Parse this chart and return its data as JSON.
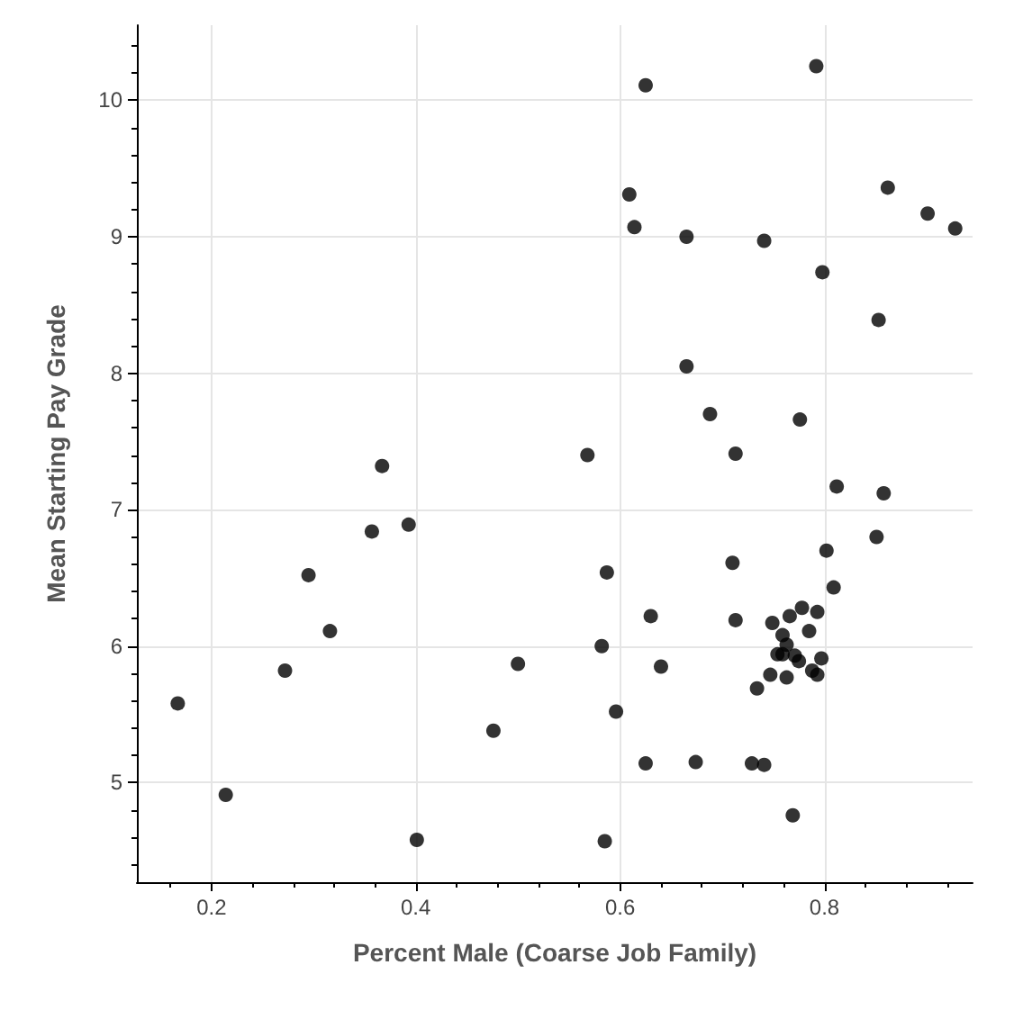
{
  "chart_data": {
    "type": "scatter",
    "xlabel": "Percent Male (Coarse Job Family)",
    "ylabel": "Mean Starting Pay Grade",
    "xlim": [
      0.127,
      0.945
    ],
    "ylim": [
      4.27,
      10.55
    ],
    "xticks": [
      0.2,
      0.4,
      0.6,
      0.8
    ],
    "yticks": [
      5,
      6,
      7,
      8,
      9,
      10
    ],
    "grid": true,
    "marker": "circle",
    "series": [
      {
        "color": "#000000",
        "x": [
          0.167,
          0.214,
          0.272,
          0.295,
          0.316,
          0.357,
          0.367,
          0.393,
          0.401,
          0.476,
          0.5,
          0.568,
          0.587,
          0.582,
          0.585,
          0.596,
          0.625,
          0.792,
          0.609,
          0.614,
          0.665,
          0.741,
          0.798,
          0.862,
          0.901,
          0.928,
          0.853,
          0.665,
          0.688,
          0.776,
          0.713,
          0.812,
          0.858,
          0.63,
          0.64,
          0.625,
          0.674,
          0.851,
          0.802,
          0.71,
          0.809,
          0.713,
          0.749,
          0.766,
          0.778,
          0.793,
          0.785,
          0.759,
          0.763,
          0.754,
          0.759,
          0.771,
          0.775,
          0.797,
          0.788,
          0.793,
          0.747,
          0.763,
          0.734,
          0.729,
          0.741,
          0.769
        ],
        "values": [
          5.58,
          4.91,
          5.82,
          6.52,
          6.11,
          6.84,
          7.32,
          6.89,
          4.58,
          5.38,
          5.87,
          7.4,
          6.54,
          6.0,
          4.57,
          5.52,
          10.11,
          10.25,
          9.31,
          9.07,
          9.0,
          8.97,
          8.74,
          9.36,
          9.17,
          9.06,
          8.39,
          8.05,
          7.7,
          7.66,
          7.41,
          7.17,
          7.12,
          6.22,
          5.85,
          5.14,
          5.15,
          6.8,
          6.7,
          6.61,
          6.43,
          6.19,
          6.17,
          6.22,
          6.28,
          6.25,
          6.11,
          6.08,
          6.01,
          5.94,
          5.94,
          5.93,
          5.89,
          5.91,
          5.82,
          5.79,
          5.79,
          5.77,
          5.69,
          5.14,
          5.13,
          4.76
        ]
      }
    ]
  }
}
